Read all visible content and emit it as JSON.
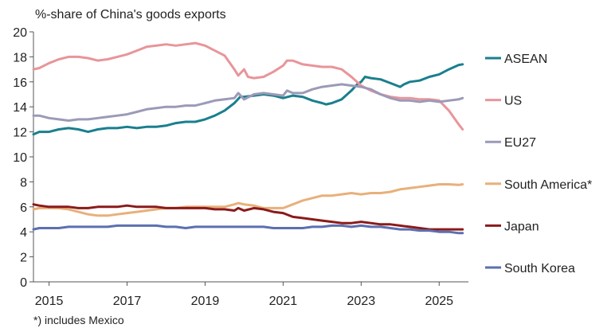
{
  "chart_data": {
    "type": "line",
    "title": "%-share of China's goods exports",
    "footnote": "*) includes Mexico",
    "xlabel": "",
    "ylabel": "",
    "xlim": [
      2014.6,
      2025.75
    ],
    "ylim": [
      0,
      20
    ],
    "x_ticks": [
      "2015",
      "2017",
      "2019",
      "2021",
      "2023",
      "2025"
    ],
    "y_ticks": [
      "0",
      "2",
      "4",
      "6",
      "8",
      "10",
      "12",
      "14",
      "16",
      "18",
      "20"
    ],
    "legend_position": "right",
    "grid": false,
    "series": [
      {
        "name": "ASEAN",
        "color": "#1a7f8e",
        "points": [
          [
            2014.6,
            11.8
          ],
          [
            2014.75,
            12.0
          ],
          [
            2015.0,
            12.0
          ],
          [
            2015.25,
            12.2
          ],
          [
            2015.5,
            12.3
          ],
          [
            2015.75,
            12.2
          ],
          [
            2016.0,
            12.0
          ],
          [
            2016.25,
            12.2
          ],
          [
            2016.5,
            12.3
          ],
          [
            2016.75,
            12.3
          ],
          [
            2017.0,
            12.4
          ],
          [
            2017.25,
            12.3
          ],
          [
            2017.5,
            12.4
          ],
          [
            2017.75,
            12.4
          ],
          [
            2018.0,
            12.5
          ],
          [
            2018.25,
            12.7
          ],
          [
            2018.5,
            12.8
          ],
          [
            2018.75,
            12.8
          ],
          [
            2019.0,
            13.0
          ],
          [
            2019.25,
            13.3
          ],
          [
            2019.5,
            13.7
          ],
          [
            2019.75,
            14.3
          ],
          [
            2019.9,
            14.8
          ],
          [
            2020.0,
            14.8
          ],
          [
            2020.25,
            14.9
          ],
          [
            2020.5,
            15.0
          ],
          [
            2020.75,
            14.9
          ],
          [
            2021.0,
            14.7
          ],
          [
            2021.25,
            14.9
          ],
          [
            2021.5,
            14.8
          ],
          [
            2021.75,
            14.5
          ],
          [
            2022.0,
            14.3
          ],
          [
            2022.1,
            14.2
          ],
          [
            2022.25,
            14.3
          ],
          [
            2022.5,
            14.6
          ],
          [
            2022.75,
            15.3
          ],
          [
            2022.9,
            15.8
          ],
          [
            2023.0,
            16.0
          ],
          [
            2023.1,
            16.4
          ],
          [
            2023.25,
            16.3
          ],
          [
            2023.5,
            16.2
          ],
          [
            2023.75,
            15.9
          ],
          [
            2024.0,
            15.6
          ],
          [
            2024.1,
            15.8
          ],
          [
            2024.25,
            16.0
          ],
          [
            2024.5,
            16.1
          ],
          [
            2024.75,
            16.4
          ],
          [
            2025.0,
            16.6
          ],
          [
            2025.25,
            17.0
          ],
          [
            2025.5,
            17.35
          ],
          [
            2025.6,
            17.4
          ]
        ]
      },
      {
        "name": "US",
        "color": "#e8959a",
        "points": [
          [
            2014.6,
            17.0
          ],
          [
            2014.75,
            17.1
          ],
          [
            2015.0,
            17.5
          ],
          [
            2015.25,
            17.8
          ],
          [
            2015.5,
            18.0
          ],
          [
            2015.75,
            18.0
          ],
          [
            2016.0,
            17.9
          ],
          [
            2016.25,
            17.7
          ],
          [
            2016.5,
            17.8
          ],
          [
            2016.75,
            18.0
          ],
          [
            2017.0,
            18.2
          ],
          [
            2017.25,
            18.5
          ],
          [
            2017.5,
            18.8
          ],
          [
            2017.75,
            18.9
          ],
          [
            2018.0,
            19.0
          ],
          [
            2018.25,
            18.9
          ],
          [
            2018.5,
            19.0
          ],
          [
            2018.75,
            19.1
          ],
          [
            2019.0,
            18.9
          ],
          [
            2019.25,
            18.5
          ],
          [
            2019.5,
            18.1
          ],
          [
            2019.75,
            17.0
          ],
          [
            2019.85,
            16.5
          ],
          [
            2020.0,
            17.0
          ],
          [
            2020.1,
            16.4
          ],
          [
            2020.25,
            16.3
          ],
          [
            2020.5,
            16.4
          ],
          [
            2020.75,
            16.8
          ],
          [
            2021.0,
            17.3
          ],
          [
            2021.1,
            17.7
          ],
          [
            2021.25,
            17.7
          ],
          [
            2021.5,
            17.4
          ],
          [
            2021.75,
            17.3
          ],
          [
            2022.0,
            17.2
          ],
          [
            2022.25,
            17.2
          ],
          [
            2022.5,
            17.0
          ],
          [
            2022.75,
            16.4
          ],
          [
            2023.0,
            15.7
          ],
          [
            2023.25,
            15.3
          ],
          [
            2023.5,
            15.0
          ],
          [
            2023.75,
            14.8
          ],
          [
            2024.0,
            14.7
          ],
          [
            2024.25,
            14.7
          ],
          [
            2024.5,
            14.6
          ],
          [
            2024.75,
            14.6
          ],
          [
            2025.0,
            14.5
          ],
          [
            2025.25,
            13.7
          ],
          [
            2025.5,
            12.6
          ],
          [
            2025.6,
            12.2
          ]
        ]
      },
      {
        "name": "EU27",
        "color": "#9b9ab8",
        "points": [
          [
            2014.6,
            13.3
          ],
          [
            2014.75,
            13.3
          ],
          [
            2015.0,
            13.1
          ],
          [
            2015.25,
            13.0
          ],
          [
            2015.5,
            12.9
          ],
          [
            2015.75,
            13.0
          ],
          [
            2016.0,
            13.0
          ],
          [
            2016.25,
            13.1
          ],
          [
            2016.5,
            13.2
          ],
          [
            2016.75,
            13.3
          ],
          [
            2017.0,
            13.4
          ],
          [
            2017.25,
            13.6
          ],
          [
            2017.5,
            13.8
          ],
          [
            2017.75,
            13.9
          ],
          [
            2018.0,
            14.0
          ],
          [
            2018.25,
            14.0
          ],
          [
            2018.5,
            14.1
          ],
          [
            2018.75,
            14.1
          ],
          [
            2019.0,
            14.3
          ],
          [
            2019.25,
            14.5
          ],
          [
            2019.5,
            14.6
          ],
          [
            2019.75,
            14.7
          ],
          [
            2019.85,
            15.1
          ],
          [
            2020.0,
            14.6
          ],
          [
            2020.25,
            15.0
          ],
          [
            2020.5,
            15.1
          ],
          [
            2020.75,
            15.0
          ],
          [
            2021.0,
            14.9
          ],
          [
            2021.1,
            15.3
          ],
          [
            2021.25,
            15.1
          ],
          [
            2021.5,
            15.1
          ],
          [
            2021.75,
            15.4
          ],
          [
            2022.0,
            15.6
          ],
          [
            2022.25,
            15.7
          ],
          [
            2022.5,
            15.8
          ],
          [
            2022.75,
            15.7
          ],
          [
            2023.0,
            15.6
          ],
          [
            2023.25,
            15.4
          ],
          [
            2023.5,
            15.0
          ],
          [
            2023.75,
            14.7
          ],
          [
            2024.0,
            14.5
          ],
          [
            2024.25,
            14.5
          ],
          [
            2024.5,
            14.4
          ],
          [
            2024.75,
            14.5
          ],
          [
            2025.0,
            14.4
          ],
          [
            2025.25,
            14.5
          ],
          [
            2025.5,
            14.6
          ],
          [
            2025.6,
            14.7
          ]
        ]
      },
      {
        "name": "South America*",
        "color": "#e8b07a",
        "points": [
          [
            2014.6,
            5.8
          ],
          [
            2014.75,
            5.9
          ],
          [
            2015.0,
            5.9
          ],
          [
            2015.25,
            5.9
          ],
          [
            2015.5,
            5.8
          ],
          [
            2015.75,
            5.6
          ],
          [
            2016.0,
            5.4
          ],
          [
            2016.25,
            5.3
          ],
          [
            2016.5,
            5.3
          ],
          [
            2016.75,
            5.4
          ],
          [
            2017.0,
            5.5
          ],
          [
            2017.25,
            5.6
          ],
          [
            2017.5,
            5.7
          ],
          [
            2017.75,
            5.8
          ],
          [
            2018.0,
            5.9
          ],
          [
            2018.25,
            5.9
          ],
          [
            2018.5,
            6.0
          ],
          [
            2018.75,
            6.0
          ],
          [
            2019.0,
            6.0
          ],
          [
            2019.25,
            6.0
          ],
          [
            2019.5,
            6.0
          ],
          [
            2019.75,
            6.2
          ],
          [
            2019.85,
            6.3
          ],
          [
            2020.0,
            6.2
          ],
          [
            2020.25,
            6.1
          ],
          [
            2020.5,
            5.9
          ],
          [
            2020.75,
            5.9
          ],
          [
            2021.0,
            5.9
          ],
          [
            2021.25,
            6.2
          ],
          [
            2021.5,
            6.5
          ],
          [
            2021.75,
            6.7
          ],
          [
            2022.0,
            6.9
          ],
          [
            2022.25,
            6.9
          ],
          [
            2022.5,
            7.0
          ],
          [
            2022.75,
            7.1
          ],
          [
            2023.0,
            7.0
          ],
          [
            2023.25,
            7.1
          ],
          [
            2023.5,
            7.1
          ],
          [
            2023.75,
            7.2
          ],
          [
            2024.0,
            7.4
          ],
          [
            2024.25,
            7.5
          ],
          [
            2024.5,
            7.6
          ],
          [
            2024.75,
            7.7
          ],
          [
            2025.0,
            7.8
          ],
          [
            2025.25,
            7.8
          ],
          [
            2025.5,
            7.75
          ],
          [
            2025.6,
            7.8
          ]
        ]
      },
      {
        "name": "Japan",
        "color": "#8b1a1a",
        "points": [
          [
            2014.6,
            6.2
          ],
          [
            2014.75,
            6.1
          ],
          [
            2015.0,
            6.0
          ],
          [
            2015.25,
            6.0
          ],
          [
            2015.5,
            6.0
          ],
          [
            2015.75,
            5.9
          ],
          [
            2016.0,
            5.9
          ],
          [
            2016.25,
            6.0
          ],
          [
            2016.5,
            6.0
          ],
          [
            2016.75,
            6.0
          ],
          [
            2017.0,
            6.1
          ],
          [
            2017.25,
            6.0
          ],
          [
            2017.5,
            6.0
          ],
          [
            2017.75,
            6.0
          ],
          [
            2018.0,
            5.9
          ],
          [
            2018.25,
            5.9
          ],
          [
            2018.5,
            5.9
          ],
          [
            2018.75,
            5.9
          ],
          [
            2019.0,
            5.9
          ],
          [
            2019.25,
            5.8
          ],
          [
            2019.5,
            5.8
          ],
          [
            2019.75,
            5.7
          ],
          [
            2019.85,
            5.9
          ],
          [
            2020.0,
            5.7
          ],
          [
            2020.25,
            5.9
          ],
          [
            2020.5,
            5.8
          ],
          [
            2020.75,
            5.6
          ],
          [
            2021.0,
            5.5
          ],
          [
            2021.25,
            5.2
          ],
          [
            2021.5,
            5.1
          ],
          [
            2021.75,
            5.0
          ],
          [
            2022.0,
            4.9
          ],
          [
            2022.25,
            4.8
          ],
          [
            2022.5,
            4.7
          ],
          [
            2022.75,
            4.7
          ],
          [
            2023.0,
            4.8
          ],
          [
            2023.25,
            4.7
          ],
          [
            2023.5,
            4.6
          ],
          [
            2023.75,
            4.6
          ],
          [
            2024.0,
            4.5
          ],
          [
            2024.25,
            4.4
          ],
          [
            2024.5,
            4.3
          ],
          [
            2024.75,
            4.2
          ],
          [
            2025.0,
            4.2
          ],
          [
            2025.25,
            4.2
          ],
          [
            2025.5,
            4.2
          ],
          [
            2025.6,
            4.2
          ]
        ]
      },
      {
        "name": "South Korea",
        "color": "#5c6fb0",
        "points": [
          [
            2014.6,
            4.2
          ],
          [
            2014.75,
            4.3
          ],
          [
            2015.0,
            4.3
          ],
          [
            2015.25,
            4.3
          ],
          [
            2015.5,
            4.4
          ],
          [
            2015.75,
            4.4
          ],
          [
            2016.0,
            4.4
          ],
          [
            2016.25,
            4.4
          ],
          [
            2016.5,
            4.4
          ],
          [
            2016.75,
            4.5
          ],
          [
            2017.0,
            4.5
          ],
          [
            2017.25,
            4.5
          ],
          [
            2017.5,
            4.5
          ],
          [
            2017.75,
            4.5
          ],
          [
            2018.0,
            4.4
          ],
          [
            2018.25,
            4.4
          ],
          [
            2018.5,
            4.3
          ],
          [
            2018.75,
            4.4
          ],
          [
            2019.0,
            4.4
          ],
          [
            2019.25,
            4.4
          ],
          [
            2019.5,
            4.4
          ],
          [
            2019.75,
            4.4
          ],
          [
            2020.0,
            4.4
          ],
          [
            2020.25,
            4.4
          ],
          [
            2020.5,
            4.4
          ],
          [
            2020.75,
            4.3
          ],
          [
            2021.0,
            4.3
          ],
          [
            2021.25,
            4.3
          ],
          [
            2021.5,
            4.3
          ],
          [
            2021.75,
            4.4
          ],
          [
            2022.0,
            4.4
          ],
          [
            2022.25,
            4.5
          ],
          [
            2022.5,
            4.5
          ],
          [
            2022.75,
            4.4
          ],
          [
            2023.0,
            4.5
          ],
          [
            2023.25,
            4.4
          ],
          [
            2023.5,
            4.4
          ],
          [
            2023.75,
            4.3
          ],
          [
            2024.0,
            4.2
          ],
          [
            2024.25,
            4.2
          ],
          [
            2024.5,
            4.1
          ],
          [
            2024.75,
            4.1
          ],
          [
            2025.0,
            4.0
          ],
          [
            2025.25,
            4.0
          ],
          [
            2025.5,
            3.9
          ],
          [
            2025.6,
            3.9
          ]
        ]
      }
    ]
  }
}
